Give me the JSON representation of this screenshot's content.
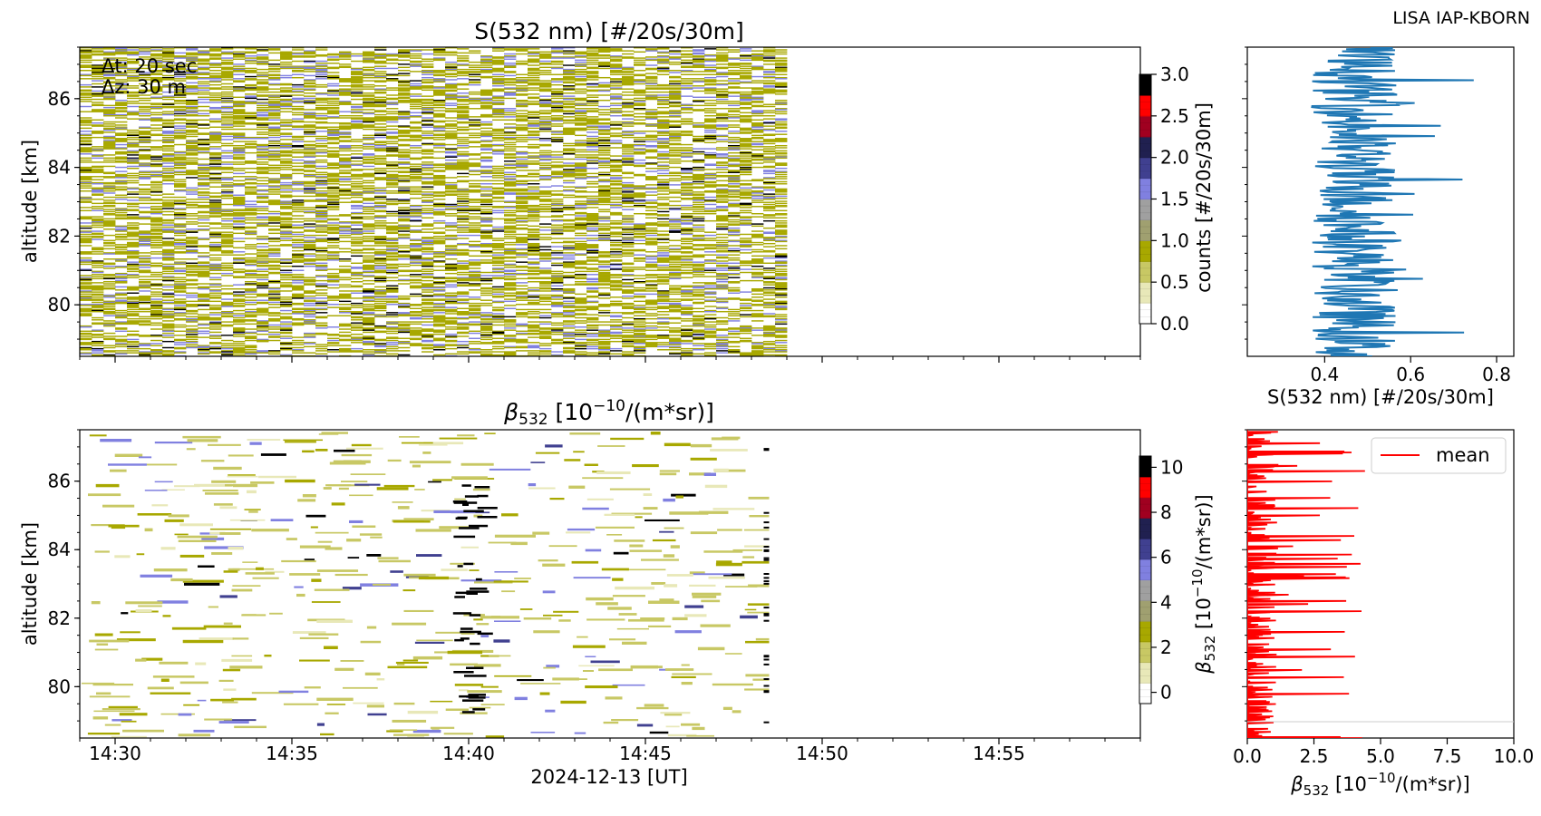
{
  "header": {
    "credit": "LISA IAP-KBORN"
  },
  "colors": {
    "axis": "#000000",
    "profile_line": "#1f77b4",
    "mean_line": "#ff0000",
    "colormap": [
      "#ffffff",
      "#e8e8b8",
      "#c8c864",
      "#a8a800",
      "#a0a070",
      "#a0a0a0",
      "#8080e0",
      "#404090",
      "#202050",
      "#a00020",
      "#ff0000",
      "#000000"
    ]
  },
  "chart_data": [
    {
      "id": "top_heatmap",
      "type": "heatmap",
      "title": "S(532 nm) [#/20s/30m]",
      "ylabel": "altitude [km]",
      "xlim": [
        "14:29",
        "14:59"
      ],
      "ylim": [
        78.5,
        87.5
      ],
      "yticks": [
        80,
        82,
        84,
        86
      ],
      "data_extent_x": [
        "14:29",
        "14:49"
      ],
      "annotations": [
        "Δt: 20 sec",
        "Δz: 30 m"
      ],
      "colorbar": {
        "label": "counts [#/20s/30m]",
        "range": [
          0,
          3
        ],
        "ticks": [
          "0.0",
          "0.5",
          "1.0",
          "1.5",
          "2.0",
          "2.5",
          "3.0"
        ]
      },
      "note_values": "random discrete counts 0–3 per 20 s × 30 m bin"
    },
    {
      "id": "top_profile",
      "type": "line",
      "xlabel": "S(532 nm) [#/20s/30m]",
      "xlim": [
        0.22,
        0.84
      ],
      "xticks": [
        "0.4",
        "0.6",
        "0.8"
      ],
      "ylim": [
        78.5,
        87.5
      ],
      "series": [
        {
          "values_range": [
            0.3,
            0.75
          ]
        }
      ]
    },
    {
      "id": "bottom_heatmap",
      "type": "heatmap",
      "title": "β532 [10⁻¹⁰/(m*sr)]",
      "ylabel": "altitude [km]",
      "xlabel": "2024-12-13 [UT]",
      "xlim": [
        "14:29",
        "14:59"
      ],
      "xticks": [
        "14:30",
        "14:35",
        "14:40",
        "14:45",
        "14:50",
        "14:55"
      ],
      "ylim": [
        78.5,
        87.5
      ],
      "yticks": [
        80,
        82,
        84,
        86
      ],
      "data_extent_x": [
        "14:29",
        "14:48.5"
      ],
      "colorbar": {
        "label": "β532 [10⁻¹⁰/(m*sr)]",
        "range": [
          -0.5,
          10.5
        ],
        "ticks": [
          "0",
          "2",
          "4",
          "6",
          "8",
          "10"
        ]
      }
    },
    {
      "id": "bottom_profile",
      "type": "line",
      "xlabel": "β532 [10⁻¹⁰/(m*sr)]",
      "xlim": [
        0,
        10
      ],
      "xticks": [
        "0.0",
        "2.5",
        "5.0",
        "7.5",
        "10.0"
      ],
      "ylim": [
        78.5,
        87.5
      ],
      "legend": {
        "entries": [
          "mean"
        ],
        "placement": "top-right"
      },
      "series": [
        {
          "name": "mean",
          "values_range": [
            0,
            4.5
          ]
        }
      ]
    }
  ]
}
